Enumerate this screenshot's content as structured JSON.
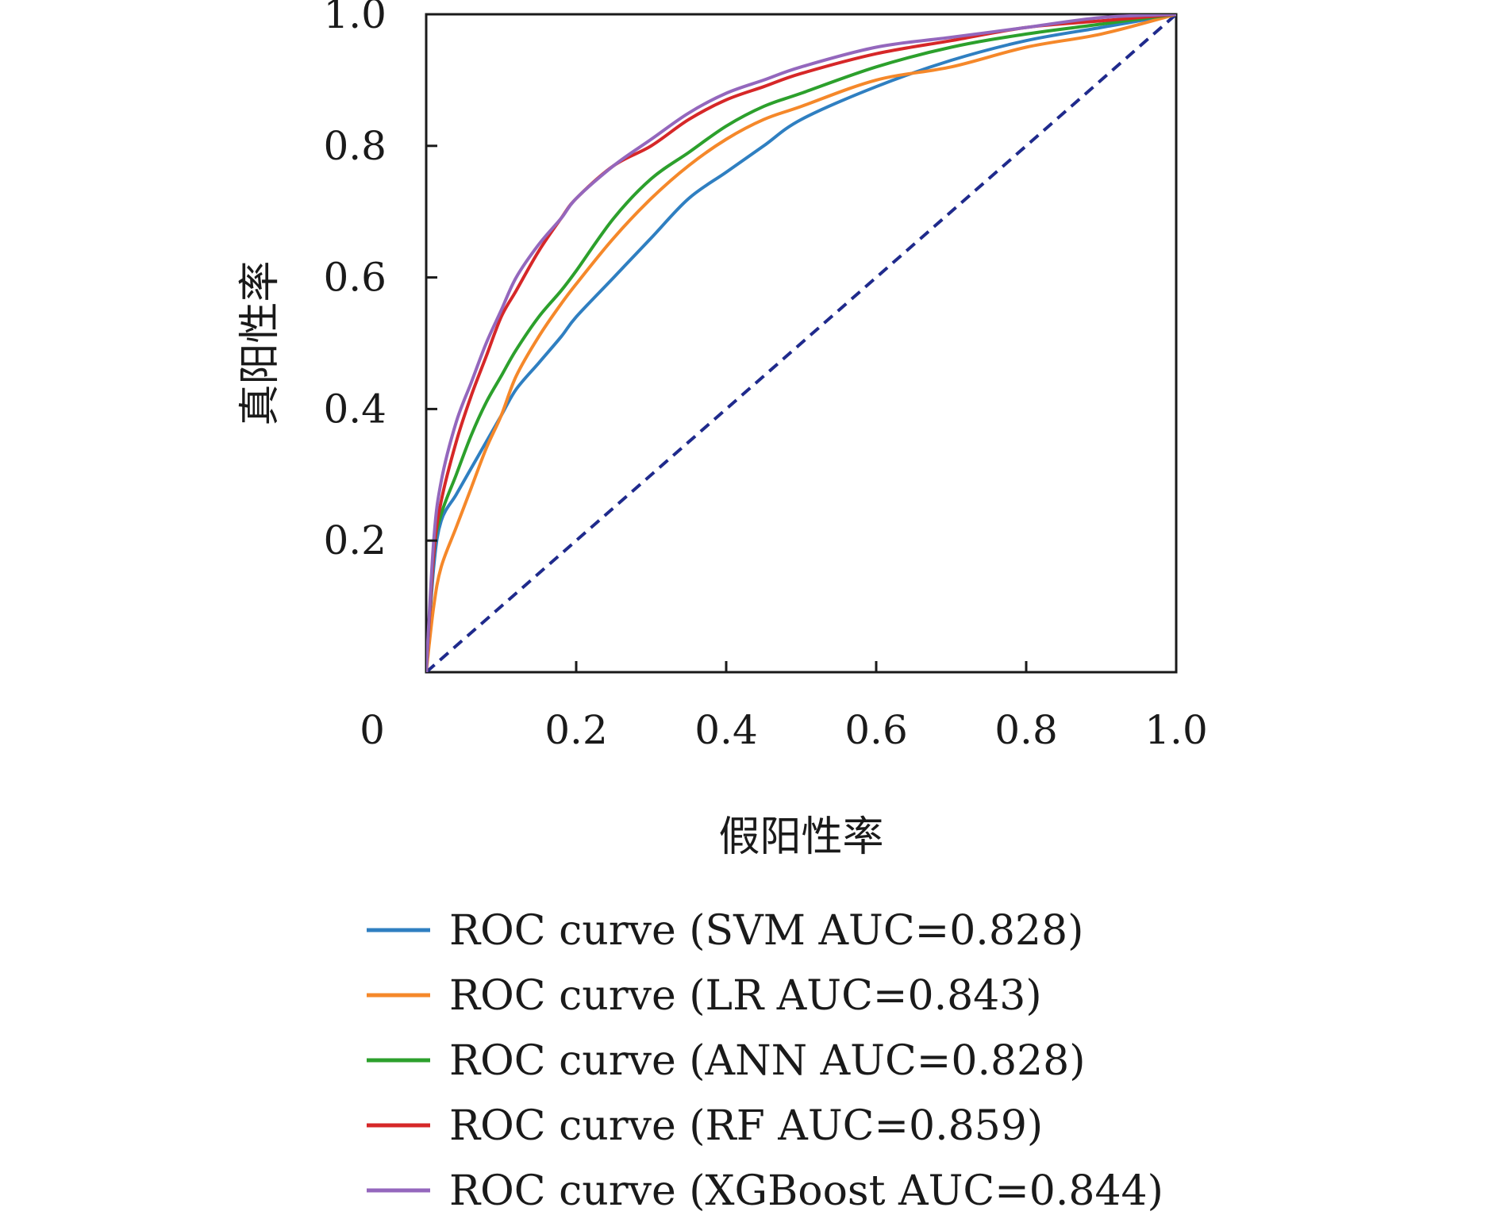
{
  "chart_data": {
    "type": "line",
    "title": "",
    "xlabel": "假阳性率",
    "ylabel": "真阳性率",
    "xlim": [
      0,
      1.0
    ],
    "ylim": [
      0,
      1.0
    ],
    "x_ticks": [
      {
        "value": 0,
        "label": "0"
      },
      {
        "value": 0.2,
        "label": "0.2"
      },
      {
        "value": 0.4,
        "label": "0.4"
      },
      {
        "value": 0.6,
        "label": "0.6"
      },
      {
        "value": 0.8,
        "label": "0.8"
      },
      {
        "value": 1.0,
        "label": "1.0"
      }
    ],
    "y_ticks": [
      {
        "value": 0.2,
        "label": "0.2"
      },
      {
        "value": 0.4,
        "label": "0.4"
      },
      {
        "value": 0.6,
        "label": "0.6"
      },
      {
        "value": 0.8,
        "label": "0.8"
      },
      {
        "value": 1.0,
        "label": "1.0"
      }
    ],
    "grid": false,
    "legend_position": "bottom",
    "series": [
      {
        "name": "ROC curve (SVM AUC=0.828)",
        "color": "#2f7fc1",
        "x": [
          0,
          0.01,
          0.02,
          0.04,
          0.06,
          0.08,
          0.1,
          0.12,
          0.15,
          0.18,
          0.2,
          0.25,
          0.3,
          0.35,
          0.4,
          0.45,
          0.5,
          0.6,
          0.7,
          0.8,
          0.9,
          1.0
        ],
        "y": [
          0,
          0.16,
          0.23,
          0.27,
          0.31,
          0.35,
          0.39,
          0.43,
          0.47,
          0.51,
          0.54,
          0.6,
          0.66,
          0.72,
          0.76,
          0.8,
          0.84,
          0.89,
          0.93,
          0.96,
          0.98,
          1.0
        ]
      },
      {
        "name": "ROC curve (LR AUC=0.843)",
        "color": "#f5882a",
        "x": [
          0,
          0.01,
          0.02,
          0.04,
          0.06,
          0.08,
          0.1,
          0.12,
          0.15,
          0.18,
          0.2,
          0.25,
          0.3,
          0.35,
          0.4,
          0.45,
          0.5,
          0.6,
          0.7,
          0.8,
          0.9,
          1.0
        ],
        "y": [
          0,
          0.1,
          0.16,
          0.22,
          0.28,
          0.34,
          0.39,
          0.45,
          0.51,
          0.56,
          0.59,
          0.66,
          0.72,
          0.77,
          0.81,
          0.84,
          0.86,
          0.9,
          0.92,
          0.95,
          0.97,
          1.0
        ]
      },
      {
        "name": "ROC curve (ANN AUC=0.828)",
        "color": "#2ca02c",
        "x": [
          0,
          0.01,
          0.02,
          0.04,
          0.06,
          0.08,
          0.1,
          0.12,
          0.15,
          0.18,
          0.2,
          0.25,
          0.3,
          0.35,
          0.4,
          0.45,
          0.5,
          0.6,
          0.7,
          0.8,
          0.9,
          1.0
        ],
        "y": [
          0,
          0.18,
          0.24,
          0.3,
          0.36,
          0.41,
          0.45,
          0.49,
          0.54,
          0.58,
          0.61,
          0.69,
          0.75,
          0.79,
          0.83,
          0.86,
          0.88,
          0.92,
          0.95,
          0.97,
          0.985,
          1.0
        ]
      },
      {
        "name": "ROC curve (RF AUC=0.859)",
        "color": "#d62728",
        "x": [
          0,
          0.01,
          0.02,
          0.04,
          0.06,
          0.08,
          0.1,
          0.12,
          0.15,
          0.18,
          0.2,
          0.25,
          0.3,
          0.35,
          0.4,
          0.45,
          0.5,
          0.6,
          0.7,
          0.8,
          0.9,
          1.0
        ],
        "y": [
          0,
          0.18,
          0.26,
          0.35,
          0.42,
          0.48,
          0.54,
          0.58,
          0.64,
          0.69,
          0.72,
          0.77,
          0.8,
          0.84,
          0.87,
          0.89,
          0.91,
          0.94,
          0.96,
          0.98,
          0.99,
          1.0
        ]
      },
      {
        "name": "ROC curve (XGBoost AUC=0.844)",
        "color": "#9467bd",
        "x": [
          0,
          0.01,
          0.02,
          0.04,
          0.06,
          0.08,
          0.1,
          0.12,
          0.15,
          0.18,
          0.2,
          0.25,
          0.3,
          0.35,
          0.4,
          0.45,
          0.5,
          0.6,
          0.7,
          0.8,
          0.9,
          1.0
        ],
        "y": [
          0,
          0.2,
          0.29,
          0.38,
          0.44,
          0.5,
          0.55,
          0.6,
          0.65,
          0.69,
          0.72,
          0.77,
          0.81,
          0.85,
          0.88,
          0.9,
          0.92,
          0.95,
          0.965,
          0.98,
          0.995,
          1.0
        ]
      }
    ],
    "reference_line": {
      "x": [
        0,
        1.0
      ],
      "y": [
        0,
        1.0
      ],
      "color": "#1f2a8c",
      "style": "dashed"
    }
  }
}
